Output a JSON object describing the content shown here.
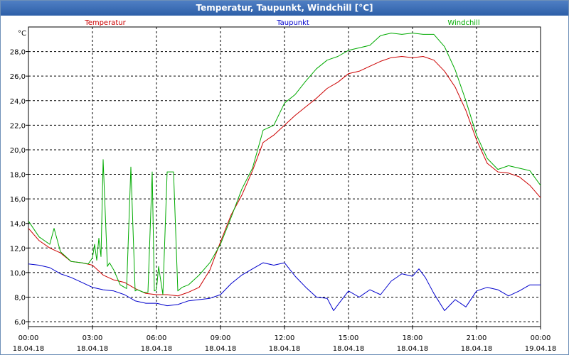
{
  "window": {
    "title": "Temperatur, Taupunkt, Windchill [°C]"
  },
  "chart_data": {
    "type": "line",
    "title": "Temperatur, Taupunkt, Windchill [°C]",
    "ylabel": "°C",
    "xlabel": "",
    "ylim": [
      5.6,
      30.0
    ],
    "xlim": [
      0,
      24
    ],
    "grid": true,
    "legend_position": "top",
    "y_ticks": [
      6,
      8,
      10,
      12,
      14,
      16,
      18,
      20,
      22,
      24,
      26,
      28
    ],
    "y_tick_labels": [
      "6,0",
      "8,0",
      "10,0",
      "12,0",
      "14,0",
      "16,0",
      "18,0",
      "20,0",
      "22,0",
      "24,0",
      "26,0",
      "28,0"
    ],
    "x_ticks": [
      {
        "hour": 0,
        "time": "00:00",
        "date": "18.04.18"
      },
      {
        "hour": 3,
        "time": "03:00",
        "date": "18.04.18"
      },
      {
        "hour": 6,
        "time": "06:00",
        "date": "18.04.18"
      },
      {
        "hour": 9,
        "time": "09:00",
        "date": "18.04.18"
      },
      {
        "hour": 12,
        "time": "12:00",
        "date": "18.04.18"
      },
      {
        "hour": 15,
        "time": "15:00",
        "date": "18.04.18"
      },
      {
        "hour": 18,
        "time": "18:00",
        "date": "18.04.18"
      },
      {
        "hour": 21,
        "time": "21:00",
        "date": "18.04.18"
      },
      {
        "hour": 24,
        "time": "00:00",
        "date": "19.04.18"
      }
    ],
    "series": [
      {
        "name": "Temperatur",
        "color": "#cc0000",
        "legend_align": "left",
        "x": [
          0,
          0.5,
          1,
          1.5,
          2,
          2.5,
          3,
          3.5,
          4,
          4.5,
          5,
          5.5,
          6,
          6.5,
          7,
          7.5,
          8,
          8.5,
          9,
          9.5,
          10,
          10.5,
          11,
          11.5,
          12,
          12.5,
          13,
          13.5,
          14,
          14.5,
          15,
          15.5,
          16,
          16.5,
          17,
          17.5,
          18,
          18.5,
          19,
          19.5,
          20,
          20.5,
          21,
          21.5,
          22,
          22.5,
          23,
          23.5,
          24
        ],
        "values": [
          13.6,
          12.6,
          12.0,
          11.6,
          10.9,
          10.8,
          10.6,
          9.8,
          9.4,
          9.2,
          8.7,
          8.3,
          8.2,
          8.2,
          8.1,
          8.4,
          8.8,
          10.2,
          12.5,
          14.7,
          16.3,
          18.3,
          20.6,
          21.2,
          22.0,
          22.8,
          23.5,
          24.2,
          25.0,
          25.5,
          26.2,
          26.4,
          26.8,
          27.2,
          27.5,
          27.6,
          27.5,
          27.6,
          27.3,
          26.4,
          25.1,
          23.2,
          20.8,
          18.9,
          18.2,
          18.1,
          17.8,
          17.1,
          16.1
        ]
      },
      {
        "name": "Taupunkt",
        "color": "#0000cc",
        "legend_align": "center",
        "x": [
          0,
          0.5,
          1,
          1.5,
          2,
          2.5,
          3,
          3.5,
          4,
          4.5,
          5,
          5.5,
          6,
          6.5,
          7,
          7.5,
          8,
          8.5,
          9,
          9.5,
          10,
          10.5,
          11,
          11.5,
          12,
          12.5,
          13,
          13.5,
          14,
          14.3,
          14.6,
          15,
          15.5,
          16,
          16.5,
          17,
          17.5,
          18,
          18.3,
          18.6,
          19,
          19.5,
          20,
          20.5,
          21,
          21.5,
          22,
          22.5,
          23,
          23.5,
          24
        ],
        "values": [
          10.7,
          10.6,
          10.4,
          9.9,
          9.6,
          9.2,
          8.8,
          8.6,
          8.5,
          8.2,
          7.7,
          7.5,
          7.5,
          7.3,
          7.4,
          7.7,
          7.8,
          7.9,
          8.2,
          9.1,
          9.8,
          10.3,
          10.8,
          10.6,
          10.8,
          9.7,
          8.8,
          8.0,
          7.9,
          6.9,
          7.6,
          8.5,
          8.0,
          8.6,
          8.2,
          9.3,
          9.9,
          9.7,
          10.3,
          9.6,
          8.3,
          6.9,
          7.8,
          7.2,
          8.5,
          8.8,
          8.6,
          8.1,
          8.5,
          9.0,
          9.0
        ]
      },
      {
        "name": "Windchill",
        "color": "#00aa00",
        "legend_align": "right",
        "x": [
          0,
          0.5,
          1,
          1.2,
          1.5,
          2,
          2.5,
          2.8,
          3,
          3.1,
          3.2,
          3.3,
          3.4,
          3.5,
          3.7,
          3.8,
          4,
          4.3,
          4.6,
          4.8,
          5,
          5.1,
          5.4,
          5.6,
          5.8,
          5.9,
          6,
          6.1,
          6.3,
          6.5,
          6.8,
          7.0,
          7.2,
          7.5,
          8,
          8.5,
          9,
          9.5,
          10,
          10.5,
          11,
          11.5,
          12,
          12.5,
          13,
          13.5,
          14,
          14.5,
          15,
          15.5,
          16,
          16.5,
          17,
          17.5,
          18,
          18.5,
          19,
          19.5,
          20,
          20.5,
          21,
          21.5,
          22,
          22.5,
          23,
          23.5,
          24
        ],
        "values": [
          14.2,
          12.9,
          12.3,
          13.6,
          11.7,
          10.9,
          10.8,
          10.7,
          11.2,
          12.3,
          11.0,
          12.8,
          11.3,
          19.2,
          10.5,
          10.8,
          10.2,
          9.0,
          8.7,
          18.6,
          8.5,
          8.6,
          8.4,
          8.4,
          18.2,
          8.5,
          8.6,
          10.5,
          8.2,
          18.2,
          18.2,
          8.5,
          8.8,
          9.0,
          9.8,
          10.8,
          12.3,
          14.5,
          16.8,
          18.5,
          21.6,
          22.0,
          23.8,
          24.5,
          25.6,
          26.6,
          27.3,
          27.6,
          28.1,
          28.3,
          28.5,
          29.3,
          29.5,
          29.4,
          29.5,
          29.4,
          29.4,
          28.4,
          26.5,
          24.0,
          21.2,
          19.3,
          18.4,
          18.7,
          18.5,
          18.3,
          17.1
        ]
      }
    ]
  }
}
